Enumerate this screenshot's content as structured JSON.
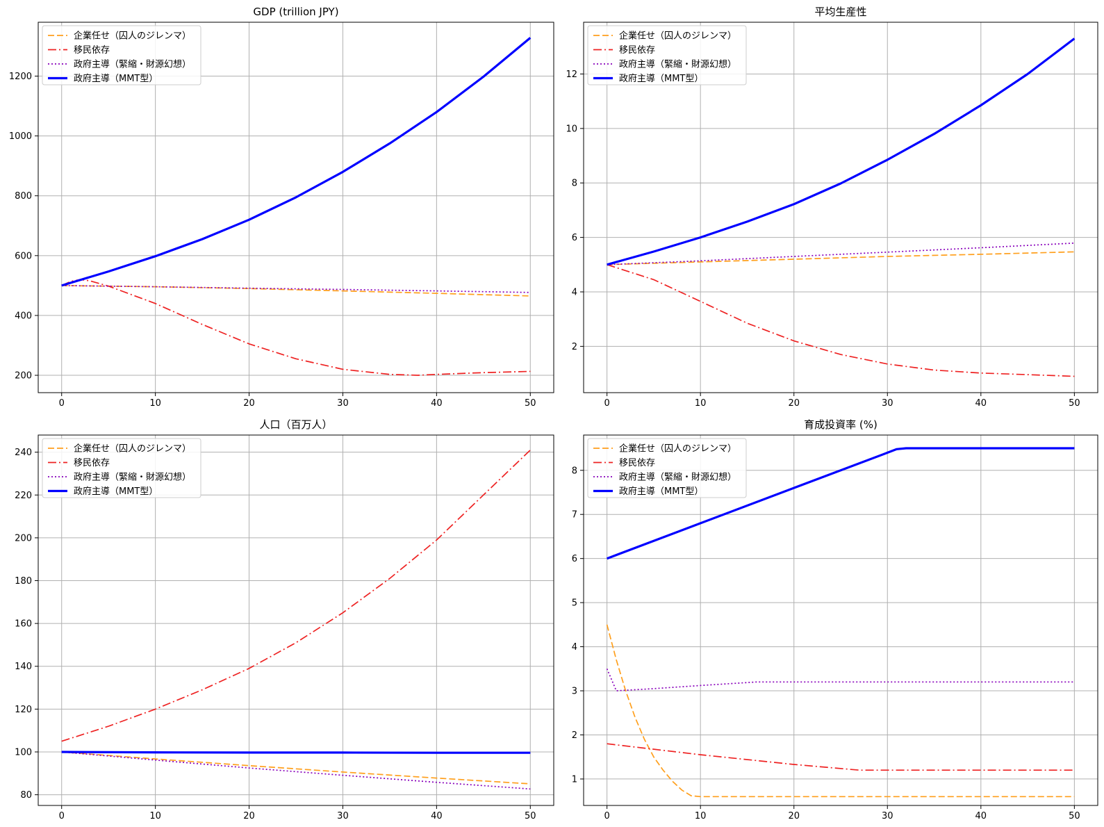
{
  "series_styles": [
    {
      "color": "#ff9f1c",
      "style": "dashed"
    },
    {
      "color": "#ee2222",
      "style": "dashdot"
    },
    {
      "color": "#8800bb",
      "style": "dotted"
    },
    {
      "color": "#0000ff",
      "style": "solid-thick"
    }
  ],
  "chart_data": [
    {
      "type": "line",
      "title": "GDP (trillion JPY)",
      "xlabel": "",
      "ylabel": "",
      "xlim": [
        -2.5,
        52.5
      ],
      "ylim": [
        142,
        1380
      ],
      "xticks": [
        0,
        10,
        20,
        30,
        40,
        50
      ],
      "yticks": [
        200,
        400,
        600,
        800,
        1000,
        1200
      ],
      "grid": true,
      "legend": "top-left",
      "series": [
        {
          "name": "企業任せ（囚人のジレンマ）",
          "x": [
            0,
            10,
            20,
            30,
            40,
            50
          ],
          "y": [
            500,
            496,
            490,
            482,
            474,
            465
          ]
        },
        {
          "name": "移民依存",
          "x": [
            0,
            1,
            2,
            3,
            5,
            10,
            15,
            20,
            25,
            30,
            35,
            38,
            40,
            45,
            50
          ],
          "y": [
            500,
            514,
            520,
            516,
            498,
            440,
            370,
            305,
            255,
            220,
            203,
            200,
            203,
            209,
            213
          ]
        },
        {
          "name": "政府主導（緊縮・財源幻想）",
          "x": [
            0,
            10,
            20,
            30,
            40,
            50
          ],
          "y": [
            500,
            496,
            491,
            487,
            482,
            477
          ]
        },
        {
          "name": "政府主導（MMT型）",
          "x": [
            0,
            5,
            10,
            15,
            20,
            25,
            30,
            35,
            40,
            45,
            50
          ],
          "y": [
            500,
            547,
            598,
            655,
            720,
            795,
            880,
            975,
            1080,
            1198,
            1328
          ]
        }
      ]
    },
    {
      "type": "line",
      "title": "平均生産性",
      "xlabel": "",
      "ylabel": "",
      "xlim": [
        -2.5,
        52.5
      ],
      "ylim": [
        0.3,
        13.9
      ],
      "xticks": [
        0,
        10,
        20,
        30,
        40,
        50
      ],
      "yticks": [
        2,
        4,
        6,
        8,
        10,
        12
      ],
      "grid": true,
      "legend": "top-left",
      "series": [
        {
          "name": "企業任せ（囚人のジレンマ）",
          "x": [
            0,
            10,
            20,
            30,
            40,
            50
          ],
          "y": [
            5.0,
            5.1,
            5.2,
            5.3,
            5.38,
            5.47
          ]
        },
        {
          "name": "移民依存",
          "x": [
            0,
            5,
            10,
            15,
            20,
            25,
            30,
            35,
            40,
            45,
            50
          ],
          "y": [
            5.0,
            4.45,
            3.65,
            2.85,
            2.2,
            1.7,
            1.35,
            1.13,
            1.02,
            0.96,
            0.9
          ]
        },
        {
          "name": "政府主導（緊縮・財源幻想）",
          "x": [
            0,
            10,
            20,
            30,
            40,
            50
          ],
          "y": [
            5.0,
            5.14,
            5.3,
            5.46,
            5.62,
            5.79
          ]
        },
        {
          "name": "政府主導（MMT型）",
          "x": [
            0,
            5,
            10,
            15,
            20,
            25,
            30,
            35,
            40,
            45,
            50
          ],
          "y": [
            5.0,
            5.48,
            6.0,
            6.58,
            7.22,
            7.98,
            8.85,
            9.8,
            10.85,
            12.0,
            13.3
          ]
        }
      ]
    },
    {
      "type": "line",
      "title": "人口（百万人）",
      "xlabel": "",
      "ylabel": "",
      "xlim": [
        -2.5,
        52.5
      ],
      "ylim": [
        75,
        248
      ],
      "xticks": [
        0,
        10,
        20,
        30,
        40,
        50
      ],
      "yticks": [
        80,
        100,
        120,
        140,
        160,
        180,
        200,
        220,
        240
      ],
      "grid": true,
      "legend": "top-left",
      "series": [
        {
          "name": "企業任せ（囚人のジレンマ）",
          "x": [
            0,
            10,
            20,
            30,
            40,
            50
          ],
          "y": [
            100,
            96.7,
            93.6,
            90.6,
            87.8,
            85.1
          ]
        },
        {
          "name": "移民依存",
          "x": [
            0,
            5,
            10,
            15,
            20,
            25,
            30,
            35,
            40,
            45,
            50
          ],
          "y": [
            105,
            112,
            120,
            129,
            139,
            151,
            165,
            181,
            199,
            220,
            241
          ]
        },
        {
          "name": "政府主導（緊縮・財源幻想）",
          "x": [
            0,
            10,
            20,
            30,
            40,
            50
          ],
          "y": [
            100,
            96.2,
            92.5,
            89.1,
            85.8,
            82.7
          ]
        },
        {
          "name": "政府主導（MMT型）",
          "x": [
            0,
            10,
            20,
            30,
            40,
            50
          ],
          "y": [
            100,
            99.8,
            99.7,
            99.7,
            99.6,
            99.6
          ]
        }
      ]
    },
    {
      "type": "line",
      "title": "育成投資率 (%)",
      "xlabel": "",
      "ylabel": "",
      "xlim": [
        -2.5,
        52.5
      ],
      "ylim": [
        0.4,
        8.8
      ],
      "xticks": [
        0,
        10,
        20,
        30,
        40,
        50
      ],
      "yticks": [
        1,
        2,
        3,
        4,
        5,
        6,
        7,
        8
      ],
      "grid": true,
      "legend": "top-left",
      "series": [
        {
          "name": "企業任せ（囚人のジレンマ）",
          "x": [
            0,
            1,
            2,
            3,
            4,
            5,
            6,
            7,
            8,
            9,
            10,
            20,
            30,
            40,
            50
          ],
          "y": [
            4.5,
            3.7,
            3.0,
            2.4,
            1.9,
            1.5,
            1.2,
            0.95,
            0.75,
            0.62,
            0.6,
            0.6,
            0.6,
            0.6,
            0.6
          ]
        },
        {
          "name": "移民依存",
          "x": [
            0,
            10,
            20,
            27,
            30,
            40,
            50
          ],
          "y": [
            1.8,
            1.55,
            1.33,
            1.2,
            1.2,
            1.2,
            1.2
          ]
        },
        {
          "name": "政府主導（緊縮・財源幻想）",
          "x": [
            0,
            1,
            5,
            10,
            16,
            20,
            30,
            40,
            50
          ],
          "y": [
            3.5,
            3.0,
            3.05,
            3.12,
            3.2,
            3.2,
            3.2,
            3.2,
            3.2
          ]
        },
        {
          "name": "政府主導（MMT型）",
          "x": [
            0,
            10,
            20,
            30,
            31,
            32,
            40,
            50
          ],
          "y": [
            6.0,
            6.8,
            7.6,
            8.4,
            8.48,
            8.5,
            8.5,
            8.5
          ]
        }
      ]
    }
  ]
}
